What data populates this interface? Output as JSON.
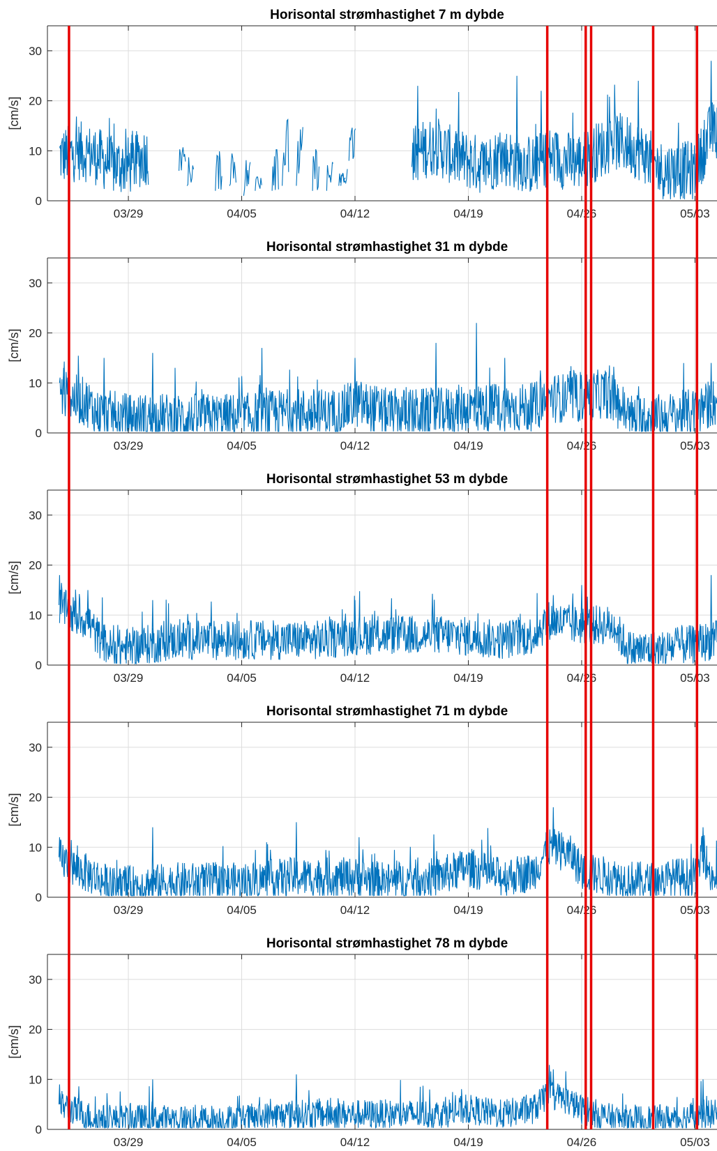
{
  "chart_data": {
    "type": "line",
    "x_start": "03/24",
    "x_end": "05/04",
    "xticks": [
      "03/29",
      "04/05",
      "04/12",
      "04/19",
      "04/26",
      "05/03"
    ],
    "yticks": [
      0,
      10,
      20,
      30
    ],
    "ylim": [
      0,
      35
    ],
    "ylabel": "[cm/s]",
    "grid": true,
    "series_color": "#0072BD",
    "event_line_color": "#E60000",
    "event_lines": [
      "03/25 08:00",
      "04/23 21:00",
      "04/26 06:00",
      "04/26 14:00",
      "04/30 10:00",
      "05/03 03:00"
    ],
    "panels": [
      {
        "title": "Horisontal strømhastighet 7 m dybde",
        "series": {
          "base": [
            [
              "03/25 00:00",
              9
            ],
            [
              "03/26 00:00",
              10
            ],
            [
              "03/27 00:00",
              9
            ],
            [
              "03/28 00:00",
              7
            ],
            [
              "03/29 00:00",
              7
            ],
            [
              "03/30 00:00",
              9
            ],
            [
              "04/15 12:00",
              9
            ],
            [
              "04/16 00:00",
              10
            ],
            [
              "04/17 00:00",
              11
            ],
            [
              "04/18 00:00",
              9
            ],
            [
              "04/19 00:00",
              8
            ],
            [
              "04/20 00:00",
              7
            ],
            [
              "04/21 00:00",
              9
            ],
            [
              "04/22 00:00",
              8
            ],
            [
              "04/23 00:00",
              7
            ],
            [
              "04/24 00:00",
              9
            ],
            [
              "04/25 00:00",
              8
            ],
            [
              "04/26 00:00",
              8
            ],
            [
              "04/27 00:00",
              10
            ],
            [
              "04/28 00:00",
              12
            ],
            [
              "04/29 00:00",
              11
            ],
            [
              "04/30 00:00",
              9
            ],
            [
              "05/01 00:00",
              6
            ],
            [
              "05/02 00:00",
              6
            ],
            [
              "05/03 00:00",
              6
            ],
            [
              "05/04 00:00",
              14
            ]
          ],
          "spread": 6,
          "gaps": [
            [
              "03/30 06:00",
              "04/15 12:00"
            ]
          ],
          "segments": [
            [
              "04/01 03:00",
              6,
              11
            ],
            [
              "04/01 15:00",
              3,
              9
            ],
            [
              "04/03 09:00",
              2,
              10
            ],
            [
              "04/04 06:00",
              3,
              12
            ],
            [
              "04/05 03:00",
              1,
              9
            ],
            [
              "04/05 20:00",
              2,
              7
            ],
            [
              "04/06 21:00",
              2,
              16
            ],
            [
              "04/07 12:00",
              3,
              17
            ],
            [
              "04/08 09:00",
              3,
              15
            ],
            [
              "04/09 09:00",
              2,
              11
            ],
            [
              "04/10 06:00",
              2,
              8
            ],
            [
              "04/11 00:00",
              3,
              6
            ],
            [
              "04/11 15:00",
              8,
              16
            ],
            [
              "04/11 03:00",
              3,
              7
            ]
          ],
          "peaks": [
            [
              "03/29 06:00",
              14
            ],
            [
              "04/15 21:00",
              23
            ],
            [
              "04/23 12:00",
              22
            ],
            [
              "04/22 00:00",
              25
            ],
            [
              "04/29 12:00",
              24
            ],
            [
              "05/04 00:00",
              28
            ]
          ]
        }
      },
      {
        "title": "Horisontal strømhastighet 31 m dybde",
        "series": {
          "base": [
            [
              "03/24 18:00",
              8
            ],
            [
              "03/25 12:00",
              7
            ],
            [
              "03/26 12:00",
              6
            ],
            [
              "03/27 00:00",
              4
            ],
            [
              "03/29 00:00",
              3
            ],
            [
              "04/02 00:00",
              3
            ],
            [
              "04/05 00:00",
              3
            ],
            [
              "04/08 00:00",
              4
            ],
            [
              "04/11 00:00",
              4
            ],
            [
              "04/12 00:00",
              6
            ],
            [
              "04/14 00:00",
              4
            ],
            [
              "04/17 00:00",
              4
            ],
            [
              "04/19 00:00",
              5
            ],
            [
              "04/21 00:00",
              5
            ],
            [
              "04/23 00:00",
              5
            ],
            [
              "04/24 00:00",
              7
            ],
            [
              "04/26 00:00",
              7
            ],
            [
              "04/27 12:00",
              8
            ],
            [
              "04/28 12:00",
              5
            ],
            [
              "04/29 00:00",
              3
            ],
            [
              "05/01 00:00",
              3
            ],
            [
              "05/03 00:00",
              4
            ],
            [
              "05/04 00:00",
              6
            ]
          ],
          "spread": 5,
          "gaps": [],
          "segments": [],
          "peaks": [
            [
              "03/25 00:00",
              13
            ],
            [
              "03/27 12:00",
              15
            ],
            [
              "03/30 12:00",
              16
            ],
            [
              "04/06 06:00",
              17
            ],
            [
              "04/12 00:00",
              15
            ],
            [
              "04/17 00:00",
              18
            ],
            [
              "04/19 12:00",
              22
            ],
            [
              "04/21 06:00",
              15
            ],
            [
              "04/26 06:00",
              18
            ],
            [
              "05/04 00:00",
              14
            ]
          ]
        }
      },
      {
        "title": "Horisontal strømhastighet 53 m dybde",
        "series": {
          "base": [
            [
              "03/24 18:00",
              12
            ],
            [
              "03/25 12:00",
              10
            ],
            [
              "03/26 12:00",
              9
            ],
            [
              "03/27 00:00",
              6
            ],
            [
              "03/28 00:00",
              3
            ],
            [
              "03/30 00:00",
              4
            ],
            [
              "04/01 00:00",
              5
            ],
            [
              "04/04 00:00",
              5
            ],
            [
              "04/07 00:00",
              5
            ],
            [
              "04/10 00:00",
              5
            ],
            [
              "04/12 00:00",
              6
            ],
            [
              "04/15 00:00",
              6
            ],
            [
              "04/18 00:00",
              6
            ],
            [
              "04/21 00:00",
              5
            ],
            [
              "04/23 00:00",
              6
            ],
            [
              "04/24 00:00",
              9
            ],
            [
              "04/25 12:00",
              8
            ],
            [
              "04/27 00:00",
              8
            ],
            [
              "04/28 00:00",
              8
            ],
            [
              "04/28 12:00",
              5
            ],
            [
              "04/29 00:00",
              3
            ],
            [
              "05/01 00:00",
              3
            ],
            [
              "05/02 00:00",
              4
            ],
            [
              "05/03 00:00",
              4
            ],
            [
              "05/04 00:00",
              5
            ]
          ],
          "spread": 4,
          "gaps": [],
          "segments": [],
          "peaks": [
            [
              "03/24 18:00",
              18
            ],
            [
              "03/26 12:00",
              15
            ],
            [
              "03/30 12:00",
              13
            ],
            [
              "04/12 00:00",
              13
            ],
            [
              "04/26 00:00",
              16
            ],
            [
              "04/24 06:00",
              14
            ],
            [
              "05/04 00:00",
              18
            ]
          ]
        }
      },
      {
        "title": "Horisontal strømhastighet 71 m dybde",
        "series": {
          "base": [
            [
              "03/24 18:00",
              8
            ],
            [
              "03/25 12:00",
              6
            ],
            [
              "03/27 00:00",
              4
            ],
            [
              "03/28 00:00",
              2
            ],
            [
              "04/01 00:00",
              3
            ],
            [
              "04/05 00:00",
              3
            ],
            [
              "04/08 00:00",
              4
            ],
            [
              "04/12 00:00",
              4
            ],
            [
              "04/14 00:00",
              3
            ],
            [
              "04/17 00:00",
              4
            ],
            [
              "04/19 00:00",
              6
            ],
            [
              "04/21 00:00",
              4
            ],
            [
              "04/23 00:00",
              5
            ],
            [
              "04/24 00:00",
              10
            ],
            [
              "04/25 00:00",
              9
            ],
            [
              "04/25 12:00",
              8
            ],
            [
              "04/26 00:00",
              5
            ],
            [
              "04/28 00:00",
              4
            ],
            [
              "04/30 00:00",
              3
            ],
            [
              "05/02 00:00",
              4
            ],
            [
              "05/03 00:00",
              4
            ],
            [
              "05/03 12:00",
              9
            ],
            [
              "05/04 00:00",
              4
            ]
          ],
          "spread": 4,
          "gaps": [],
          "segments": [],
          "peaks": [
            [
              "03/24 18:00",
              12
            ],
            [
              "03/30 12:00",
              14
            ],
            [
              "04/08 09:00",
              15
            ],
            [
              "04/12 06:00",
              12
            ],
            [
              "04/24 06:00",
              18
            ],
            [
              "05/03 12:00",
              14
            ]
          ]
        }
      },
      {
        "title": "Horisontal strømhastighet 78 m dybde",
        "series": {
          "base": [
            [
              "03/24 18:00",
              5
            ],
            [
              "03/25 12:00",
              4
            ],
            [
              "03/27 00:00",
              2
            ],
            [
              "04/01 00:00",
              2
            ],
            [
              "04/05 00:00",
              2
            ],
            [
              "04/08 00:00",
              3
            ],
            [
              "04/12 00:00",
              3
            ],
            [
              "04/17 00:00",
              3
            ],
            [
              "04/19 00:00",
              4
            ],
            [
              "04/21 00:00",
              3
            ],
            [
              "04/23 00:00",
              4
            ],
            [
              "04/24 00:00",
              7
            ],
            [
              "04/25 00:00",
              6
            ],
            [
              "04/26 00:00",
              4
            ],
            [
              "04/28 00:00",
              2
            ],
            [
              "04/30 00:00",
              2
            ],
            [
              "05/02 00:00",
              2
            ],
            [
              "05/03 00:00",
              3
            ],
            [
              "05/04 00:00",
              3
            ]
          ],
          "spread": 3,
          "gaps": [],
          "segments": [],
          "peaks": [
            [
              "03/24 18:00",
              9
            ],
            [
              "03/30 12:00",
              10
            ],
            [
              "04/08 09:00",
              11
            ],
            [
              "04/24 06:00",
              12
            ],
            [
              "05/03 12:00",
              10
            ]
          ]
        }
      }
    ]
  }
}
